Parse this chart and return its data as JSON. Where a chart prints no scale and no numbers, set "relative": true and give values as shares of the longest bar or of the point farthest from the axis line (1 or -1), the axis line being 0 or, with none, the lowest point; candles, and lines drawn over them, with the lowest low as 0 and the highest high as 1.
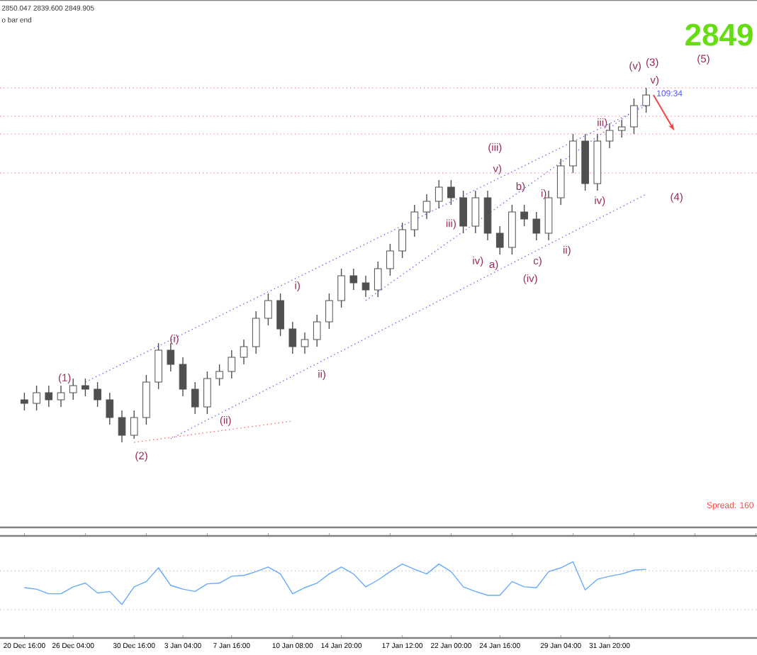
{
  "chart_data": [
    {
      "type": "candlestick",
      "relative": true,
      "tick_labels": false,
      "color": "#505050",
      "categories": [
        null,
        null,
        null,
        null,
        null,
        null,
        null,
        null,
        null,
        null,
        null,
        null,
        null,
        null,
        null,
        null,
        null,
        null,
        null,
        null,
        null,
        null,
        null,
        null,
        null,
        null,
        null,
        null,
        null,
        null,
        null,
        null,
        null,
        null,
        null,
        null,
        null,
        null,
        null,
        null,
        null,
        null,
        null,
        null,
        null,
        null,
        null,
        null,
        null,
        null,
        null,
        null
      ],
      "ohlc": [
        [
          0.12,
          0.14,
          0.09,
          0.11
        ],
        [
          0.11,
          0.16,
          0.09,
          0.14
        ],
        [
          0.14,
          0.16,
          0.1,
          0.12
        ],
        [
          0.12,
          0.16,
          0.1,
          0.14
        ],
        [
          0.14,
          0.18,
          0.12,
          0.16
        ],
        [
          0.16,
          0.18,
          0.13,
          0.15
        ],
        [
          0.15,
          0.17,
          0.1,
          0.12
        ],
        [
          0.12,
          0.14,
          0.05,
          0.07
        ],
        [
          0.07,
          0.09,
          0.0,
          0.02
        ],
        [
          0.02,
          0.09,
          0.01,
          0.07
        ],
        [
          0.07,
          0.19,
          0.05,
          0.17
        ],
        [
          0.17,
          0.28,
          0.15,
          0.26
        ],
        [
          0.26,
          0.28,
          0.2,
          0.22
        ],
        [
          0.22,
          0.24,
          0.13,
          0.15
        ],
        [
          0.15,
          0.17,
          0.08,
          0.1
        ],
        [
          0.1,
          0.2,
          0.08,
          0.18
        ],
        [
          0.18,
          0.22,
          0.16,
          0.2
        ],
        [
          0.2,
          0.26,
          0.18,
          0.24
        ],
        [
          0.24,
          0.29,
          0.22,
          0.27
        ],
        [
          0.27,
          0.37,
          0.25,
          0.35
        ],
        [
          0.35,
          0.42,
          0.33,
          0.4
        ],
        [
          0.4,
          0.42,
          0.3,
          0.32
        ],
        [
          0.32,
          0.34,
          0.25,
          0.27
        ],
        [
          0.27,
          0.31,
          0.25,
          0.29
        ],
        [
          0.29,
          0.36,
          0.27,
          0.34
        ],
        [
          0.34,
          0.42,
          0.32,
          0.4
        ],
        [
          0.4,
          0.49,
          0.38,
          0.47
        ],
        [
          0.47,
          0.49,
          0.43,
          0.45
        ],
        [
          0.45,
          0.47,
          0.41,
          0.43
        ],
        [
          0.43,
          0.51,
          0.41,
          0.49
        ],
        [
          0.49,
          0.56,
          0.47,
          0.54
        ],
        [
          0.54,
          0.62,
          0.52,
          0.6
        ],
        [
          0.6,
          0.67,
          0.58,
          0.65
        ],
        [
          0.65,
          0.7,
          0.63,
          0.68
        ],
        [
          0.68,
          0.74,
          0.66,
          0.72
        ],
        [
          0.72,
          0.74,
          0.67,
          0.69
        ],
        [
          0.69,
          0.71,
          0.59,
          0.61
        ],
        [
          0.61,
          0.71,
          0.59,
          0.69
        ],
        [
          0.69,
          0.71,
          0.57,
          0.59
        ],
        [
          0.59,
          0.61,
          0.53,
          0.55
        ],
        [
          0.55,
          0.67,
          0.53,
          0.65
        ],
        [
          0.65,
          0.67,
          0.61,
          0.63
        ],
        [
          0.63,
          0.65,
          0.57,
          0.59
        ],
        [
          0.59,
          0.71,
          0.57,
          0.69
        ],
        [
          0.69,
          0.8,
          0.67,
          0.78
        ],
        [
          0.78,
          0.87,
          0.76,
          0.85
        ],
        [
          0.85,
          0.87,
          0.71,
          0.73
        ],
        [
          0.73,
          0.87,
          0.71,
          0.85
        ],
        [
          0.85,
          0.9,
          0.83,
          0.88
        ],
        [
          0.88,
          0.91,
          0.86,
          0.89
        ],
        [
          0.89,
          0.97,
          0.87,
          0.95
        ],
        [
          0.95,
          1.0,
          0.93,
          0.98
        ]
      ],
      "series": [
        {
          "type": "line",
          "color": "#6666ff",
          "line_style": "dotted",
          "values": [
            null,
            null,
            null,
            null,
            null,
            0.17,
            null,
            null,
            null,
            null,
            null,
            null,
            null,
            null,
            null,
            null,
            null,
            null,
            null,
            null,
            null,
            null,
            null,
            null,
            null,
            null,
            null,
            null,
            null,
            null,
            null,
            null,
            null,
            null,
            null,
            null,
            null,
            null,
            null,
            null,
            null,
            null,
            null,
            null,
            null,
            null,
            null,
            null,
            null,
            null,
            null,
            0.95
          ]
        },
        {
          "type": "line",
          "color": "#6666ff",
          "line_style": "dotted",
          "values": [
            null,
            null,
            null,
            null,
            null,
            null,
            null,
            null,
            null,
            null,
            null,
            null,
            null,
            null,
            null,
            null,
            null,
            null,
            null,
            null,
            null,
            null,
            null,
            null,
            null,
            null,
            null,
            null,
            0.4,
            null,
            null,
            null,
            null,
            null,
            null,
            null,
            null,
            null,
            null,
            null,
            null,
            null,
            null,
            null,
            null,
            null,
            null,
            null,
            null,
            null,
            null,
            0.96
          ]
        },
        {
          "type": "line",
          "color": "#6666ff",
          "line_style": "dotted",
          "values": [
            null,
            null,
            null,
            null,
            null,
            null,
            null,
            null,
            null,
            null,
            null,
            null,
            0.01,
            null,
            null,
            null,
            null,
            null,
            null,
            null,
            null,
            null,
            null,
            null,
            null,
            null,
            null,
            null,
            null,
            null,
            null,
            null,
            null,
            null,
            null,
            null,
            null,
            null,
            null,
            null,
            null,
            null,
            null,
            null,
            null,
            null,
            null,
            null,
            null,
            null,
            null,
            0.7
          ]
        },
        {
          "type": "line",
          "color": "#ff6666",
          "line_style": "dotted",
          "values": [
            null,
            null,
            null,
            null,
            null,
            null,
            null,
            null,
            null,
            0.0,
            null,
            null,
            null,
            null,
            null,
            null,
            null,
            null,
            null,
            null,
            null,
            null,
            0.06,
            null,
            null,
            null,
            null,
            null,
            null,
            null,
            null,
            null,
            null,
            null,
            null,
            null,
            null,
            null,
            null,
            null,
            null,
            null,
            null,
            null,
            null,
            null,
            null,
            null,
            null,
            null,
            null,
            null
          ]
        }
      ],
      "ref_lines": [
        {
          "axis": "y",
          "value": 1.0,
          "color": "#ff6666",
          "line_style": "dotted"
        },
        {
          "axis": "y",
          "value": 0.92,
          "color": "#ff6666",
          "line_style": "dotted"
        },
        {
          "axis": "y",
          "value": 0.87,
          "color": "#ff6666",
          "line_style": "dotted"
        },
        {
          "axis": "y",
          "value": 0.76,
          "color": "#ff6666",
          "line_style": "dotted"
        }
      ],
      "annotations": [
        "2850.047 2839.600 2849.905",
        "o bar end",
        "2849",
        "109:34",
        "Spread: 160",
        "(1)",
        "(2)",
        "(i)",
        "(ii)",
        "i)",
        "ii)",
        "iii)",
        "iv)",
        "(iii)",
        "v)",
        "b)",
        "a)",
        "c)",
        "(iv)",
        "i)",
        "ii)",
        "iv)",
        "iii)",
        "(v)",
        "(3)",
        "v)",
        "(5)",
        "(4)"
      ]
    },
    {
      "type": "line",
      "relative": true,
      "tick_labels": "x",
      "categories": [
        "20 Dec 16:00",
        null,
        null,
        null,
        "26 Dec 04:00",
        null,
        null,
        null,
        null,
        "30 Dec 16:00",
        null,
        null,
        null,
        "3 Jan 04:00",
        null,
        null,
        null,
        "7 Jan 16:00",
        null,
        null,
        null,
        null,
        "10 Jan 08:00",
        null,
        null,
        null,
        "14 Jan 20:00",
        null,
        null,
        null,
        null,
        "17 Jan 12:00",
        null,
        null,
        null,
        "22 Jan 00:00",
        null,
        null,
        null,
        "24 Jan 16:00",
        null,
        null,
        null,
        null,
        "29 Jan 04:00",
        null,
        null,
        null,
        "31 Jan 20:00",
        null,
        null,
        null
      ],
      "series": [
        {
          "color": "#66aaff",
          "values": [
            0.66,
            0.64,
            0.58,
            0.58,
            0.67,
            0.72,
            0.59,
            0.61,
            0.44,
            0.67,
            0.74,
            0.92,
            0.69,
            0.64,
            0.61,
            0.71,
            0.72,
            0.81,
            0.82,
            0.87,
            0.93,
            0.84,
            0.58,
            0.66,
            0.72,
            0.84,
            0.93,
            0.84,
            0.67,
            0.76,
            0.87,
            0.97,
            0.9,
            0.84,
            0.97,
            0.87,
            0.67,
            0.61,
            0.56,
            0.56,
            0.74,
            0.67,
            0.66,
            0.87,
            0.92,
            1.0,
            0.63,
            0.77,
            0.81,
            0.84,
            0.89,
            0.9
          ]
        }
      ],
      "ref_lines": [
        {
          "axis": "y",
          "value": 0.88,
          "color": "#bbbbbb",
          "line_style": "dotted"
        },
        {
          "axis": "y",
          "value": 0.37,
          "color": "#bbbbbb",
          "line_style": "dotted"
        }
      ]
    }
  ]
}
